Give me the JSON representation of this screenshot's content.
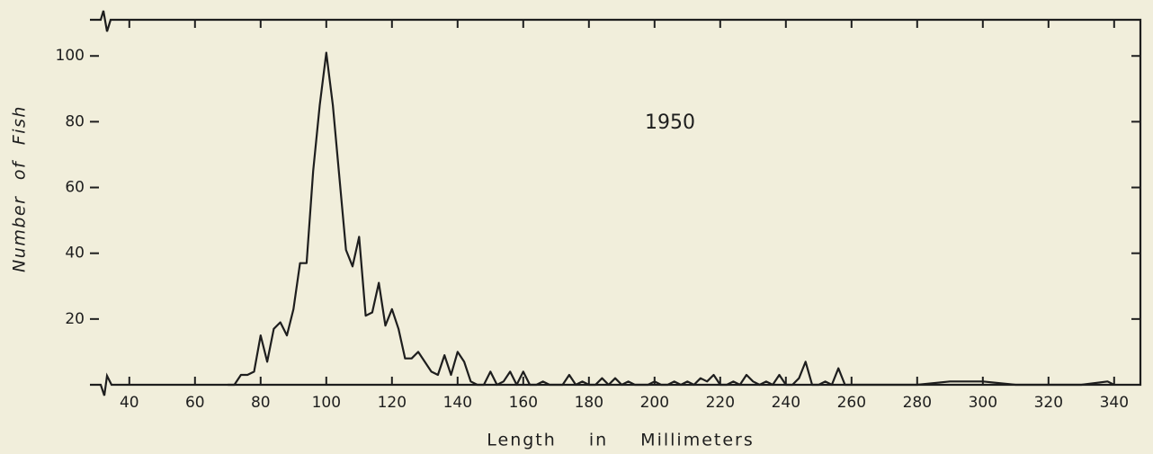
{
  "chart_data": {
    "type": "line",
    "annotation": "1950",
    "x_label": "Length in Millimeters",
    "y_label": "Number of Fish",
    "x": [
      70,
      72,
      74,
      76,
      78,
      80,
      82,
      84,
      86,
      88,
      90,
      92,
      94,
      96,
      98,
      100,
      102,
      104,
      106,
      108,
      110,
      112,
      114,
      116,
      118,
      120,
      122,
      124,
      126,
      128,
      130,
      132,
      134,
      136,
      138,
      140,
      142,
      144,
      146,
      148,
      150,
      152,
      154,
      156,
      158,
      160,
      162,
      164,
      166,
      168,
      170,
      172,
      174,
      176,
      178,
      180,
      182,
      184,
      186,
      188,
      190,
      192,
      194,
      196,
      198,
      200,
      202,
      204,
      206,
      208,
      210,
      212,
      214,
      216,
      218,
      220,
      222,
      224,
      226,
      228,
      230,
      232,
      234,
      236,
      238,
      240,
      242,
      244,
      246,
      248,
      250,
      252,
      254,
      256,
      258,
      260,
      270,
      280,
      290,
      300,
      310,
      320,
      330,
      338,
      340
    ],
    "values": [
      0,
      0,
      3,
      3,
      4,
      15,
      7,
      17,
      19,
      15,
      23,
      37,
      37,
      65,
      85,
      101,
      85,
      63,
      41,
      36,
      45,
      21,
      22,
      31,
      18,
      23,
      17,
      8,
      8,
      10,
      7,
      4,
      3,
      9,
      3,
      10,
      7,
      1,
      0,
      0,
      4,
      0,
      1,
      4,
      0,
      4,
      0,
      0,
      1,
      0,
      0,
      0,
      3,
      0,
      1,
      0,
      0,
      2,
      0,
      2,
      0,
      1,
      0,
      0,
      0,
      1,
      0,
      0,
      1,
      0,
      1,
      0,
      2,
      1,
      3,
      0,
      0,
      1,
      0,
      3,
      1,
      0,
      1,
      0,
      3,
      0,
      0,
      2,
      7,
      0,
      0,
      1,
      0,
      5,
      0,
      0,
      0,
      0,
      1,
      1,
      0,
      0,
      0,
      1,
      0
    ],
    "color": "#1e1e1e",
    "xlim": [
      28,
      348
    ],
    "ylim": [
      0,
      111
    ],
    "xticks": [
      40,
      60,
      80,
      100,
      120,
      140,
      160,
      180,
      200,
      220,
      240,
      260,
      280,
      300,
      320,
      340
    ],
    "yticks": [
      20,
      40,
      60,
      80,
      100
    ]
  }
}
